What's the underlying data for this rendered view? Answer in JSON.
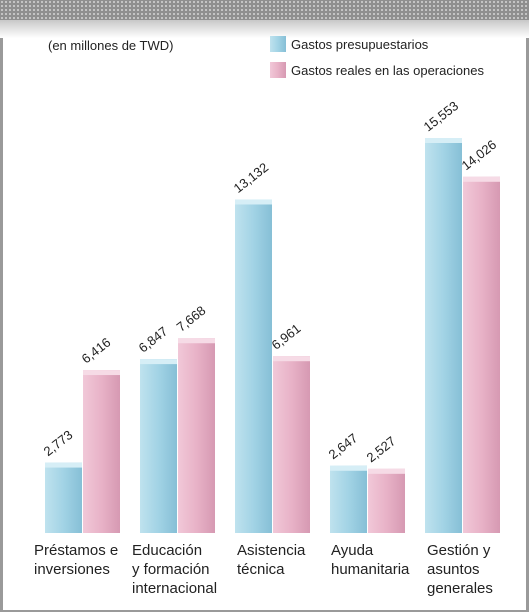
{
  "note": "(en millones de TWD)",
  "colors": {
    "budget": "#9fd0e3",
    "actual": "#e9b3c8"
  },
  "chart_data": {
    "type": "bar",
    "categories": [
      [
        "Préstamos e",
        "inversiones"
      ],
      [
        "Educación",
        "y formación",
        "internacional"
      ],
      [
        "Asistencia",
        "técnica"
      ],
      [
        "Ayuda",
        "humanitaria"
      ],
      [
        "Gestión y",
        "asuntos",
        "generales"
      ]
    ],
    "series": [
      {
        "name": "Gastos presupuestarios",
        "values": [
          2773,
          6847,
          13132,
          2647,
          15553
        ],
        "labels": [
          "2,773",
          "6,847",
          "13,132",
          "2,647",
          "15,553"
        ]
      },
      {
        "name": "Gastos reales en las operaciones",
        "values": [
          6416,
          7668,
          6961,
          2527,
          14026
        ],
        "labels": [
          "6,416",
          "7,668",
          "6,961",
          "2,527",
          "14,026"
        ]
      }
    ],
    "ylim": [
      0,
      16000
    ],
    "legend": "top-right",
    "grid": false
  }
}
